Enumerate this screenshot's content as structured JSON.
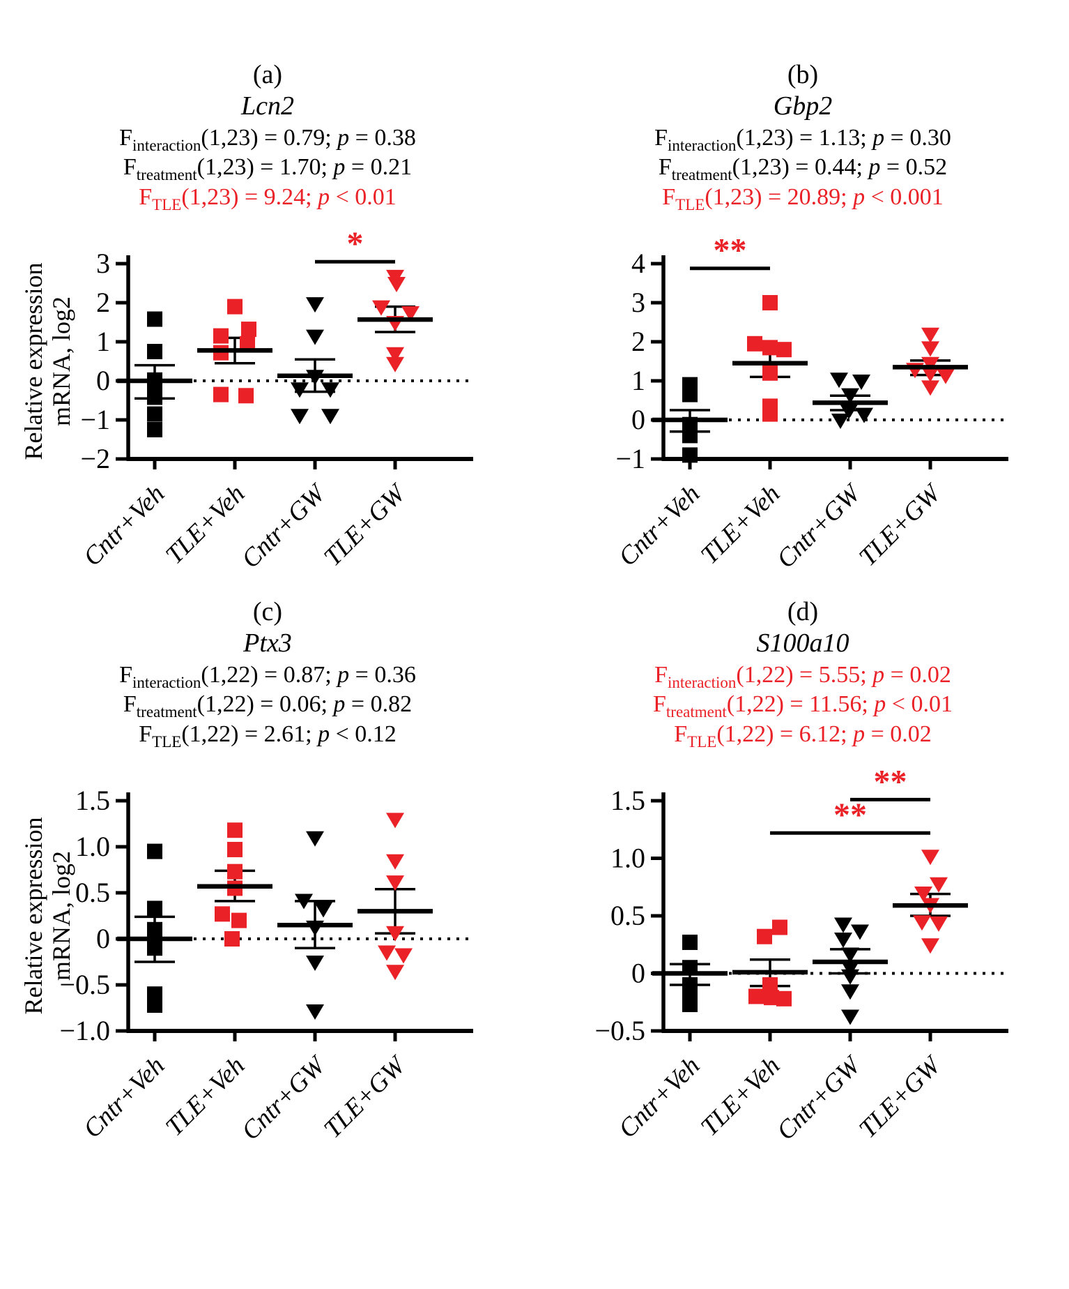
{
  "figure_title": "",
  "colors": {
    "red": "#EA2127",
    "black": "#000000",
    "background": "#FFFFFF"
  },
  "panels": [
    {
      "letter": "(a)",
      "gene": "Lcn2",
      "stats": [
        {
          "f": "F",
          "sub": "interaction",
          "left": "(1,23) = 0.79; ",
          "p": "p",
          "right": " = 0.38",
          "color": "#000000"
        },
        {
          "f": "F",
          "sub": "treatment",
          "left": "(1,23) = 1.70; ",
          "p": "p",
          "right": " = 0.21",
          "color": "#000000"
        },
        {
          "f": "F",
          "sub": "TLE",
          "left": "(1,23) = 9.24; ",
          "p": "p",
          "right": " < 0.01",
          "color": "#EA2127"
        }
      ]
    },
    {
      "letter": "(b)",
      "gene": "Gbp2",
      "stats": [
        {
          "f": "F",
          "sub": "interaction",
          "left": "(1,23) = 1.13; ",
          "p": "p",
          "right": " = 0.30",
          "color": "#000000"
        },
        {
          "f": "F",
          "sub": "treatment",
          "left": "(1,23) = 0.44; ",
          "p": "p",
          "right": " = 0.52",
          "color": "#000000"
        },
        {
          "f": "F",
          "sub": "TLE",
          "left": "(1,23) = 20.89; ",
          "p": "p",
          "right": " < 0.001",
          "color": "#EA2127"
        }
      ]
    },
    {
      "letter": "(c)",
      "gene": "Ptx3",
      "stats": [
        {
          "f": "F",
          "sub": "interaction",
          "left": "(1,22) = 0.87; ",
          "p": "p",
          "right": " = 0.36",
          "color": "#000000"
        },
        {
          "f": "F",
          "sub": "treatment",
          "left": "(1,22) = 0.06; ",
          "p": "p",
          "right": " = 0.82",
          "color": "#000000"
        },
        {
          "f": "F",
          "sub": "TLE",
          "left": "(1,22) = 2.61; ",
          "p": "p",
          "right": " < 0.12",
          "color": "#000000"
        }
      ]
    },
    {
      "letter": "(d)",
      "gene": "S100a10",
      "stats": [
        {
          "f": "F",
          "sub": "interaction",
          "left": "(1,22) = 5.55; ",
          "p": "p",
          "right": " = 0.02",
          "color": "#EA2127"
        },
        {
          "f": "F",
          "sub": "treatment",
          "left": "(1,22) = 11.56; ",
          "p": "p",
          "right": " < 0.01",
          "color": "#EA2127"
        },
        {
          "f": "F",
          "sub": "TLE",
          "left": "(1,22) = 6.12; ",
          "p": "p",
          "right": " = 0.02",
          "color": "#EA2127"
        }
      ]
    }
  ],
  "chart_data": [
    {
      "type": "scatter",
      "title": "Lcn2",
      "ylabel": "Relative expression mRNA, log2",
      "ylabel_lines": [
        "Relative expression",
        "mRNA, log2"
      ],
      "ylim": [
        -2,
        3
      ],
      "yticks": [
        {
          "v": 3,
          "label": "3"
        },
        {
          "v": 2,
          "label": "2"
        },
        {
          "v": 1,
          "label": "1"
        },
        {
          "v": 0,
          "label": "0"
        },
        {
          "v": -1,
          "label": "−1"
        },
        {
          "v": -2,
          "label": "−2"
        }
      ],
      "zero_line": 0,
      "grid": false,
      "categories": [
        "Cntr+Veh",
        "TLE+Veh",
        "Cntr+GW",
        "TLE+GW"
      ],
      "groups": [
        {
          "name": "Cntr+Veh",
          "marker": "square",
          "color": "#000000",
          "mean": 0.0,
          "sem": [
            -0.45,
            0.4
          ],
          "points": [
            [
              0,
              1.58
            ],
            [
              0,
              0.75
            ],
            [
              0,
              0.02
            ],
            [
              0,
              -0.3
            ],
            [
              0,
              -0.42
            ],
            [
              0,
              -0.85
            ],
            [
              0,
              -1.25
            ]
          ]
        },
        {
          "name": "TLE+Veh",
          "marker": "square",
          "color": "#EA2127",
          "mean": 0.78,
          "sem": [
            0.45,
            1.1
          ],
          "points": [
            [
              0,
              1.9
            ],
            [
              20,
              1.32
            ],
            [
              -20,
              1.15
            ],
            [
              18,
              0.95
            ],
            [
              -20,
              0.72
            ],
            [
              -20,
              -0.35
            ],
            [
              16,
              -0.38
            ]
          ]
        },
        {
          "name": "Cntr+GW",
          "marker": "triangle-down",
          "color": "#000000",
          "mean": 0.13,
          "sem": [
            -0.28,
            0.55
          ],
          "points": [
            [
              0,
              1.98
            ],
            [
              0,
              1.15
            ],
            [
              0,
              0.12
            ],
            [
              -22,
              -0.2
            ],
            [
              22,
              -0.2
            ],
            [
              -22,
              -0.88
            ],
            [
              22,
              -0.88
            ]
          ]
        },
        {
          "name": "TLE+GW",
          "marker": "triangle-down",
          "color": "#EA2127",
          "mean": 1.57,
          "sem": [
            1.25,
            1.9
          ],
          "points": [
            [
              0,
              2.68
            ],
            [
              2,
              2.5
            ],
            [
              -20,
              1.9
            ],
            [
              22,
              1.75
            ],
            [
              0,
              1.5
            ],
            [
              0,
              0.7
            ],
            [
              0,
              0.45
            ]
          ]
        }
      ],
      "sig": [
        {
          "from": 2,
          "to": 3,
          "y": 3.05,
          "label": "*",
          "color": "#EA2127"
        }
      ]
    },
    {
      "type": "scatter",
      "title": "Gbp2",
      "ylabel": "",
      "ylabel_lines": [],
      "ylim": [
        -1,
        4
      ],
      "yticks": [
        {
          "v": 4,
          "label": "4"
        },
        {
          "v": 3,
          "label": "3"
        },
        {
          "v": 2,
          "label": "2"
        },
        {
          "v": 1,
          "label": "1"
        },
        {
          "v": 0,
          "label": "0"
        },
        {
          "v": -1,
          "label": "−1"
        }
      ],
      "zero_line": 0,
      "grid": false,
      "categories": [
        "Cntr+Veh",
        "TLE+Veh",
        "Cntr+GW",
        "TLE+GW"
      ],
      "groups": [
        {
          "name": "Cntr+Veh",
          "marker": "square",
          "color": "#000000",
          "mean": 0.0,
          "sem": [
            -0.3,
            0.25
          ],
          "points": [
            [
              0,
              0.9
            ],
            [
              0,
              0.65
            ],
            [
              0,
              -0.12
            ],
            [
              0,
              -0.22
            ],
            [
              0,
              -0.3
            ],
            [
              0,
              -0.4
            ],
            [
              0,
              -0.9
            ]
          ]
        },
        {
          "name": "TLE+Veh",
          "marker": "square",
          "color": "#EA2127",
          "mean": 1.45,
          "sem": [
            1.1,
            1.85
          ],
          "points": [
            [
              0,
              3.0
            ],
            [
              -22,
              1.95
            ],
            [
              0,
              1.85
            ],
            [
              20,
              1.8
            ],
            [
              0,
              1.2
            ],
            [
              0,
              0.35
            ],
            [
              0,
              0.15
            ]
          ]
        },
        {
          "name": "Cntr+GW",
          "marker": "triangle-down",
          "color": "#000000",
          "mean": 0.44,
          "sem": [
            0.25,
            0.62
          ],
          "points": [
            [
              -16,
              1.05
            ],
            [
              16,
              1.0
            ],
            [
              0,
              0.65
            ],
            [
              0,
              0.3
            ],
            [
              -2,
              0.25
            ],
            [
              20,
              0.15
            ],
            [
              -14,
              0.0
            ]
          ]
        },
        {
          "name": "TLE+GW",
          "marker": "triangle-down",
          "color": "#EA2127",
          "mean": 1.35,
          "sem": [
            1.15,
            1.52
          ],
          "points": [
            [
              0,
              2.2
            ],
            [
              0,
              1.85
            ],
            [
              0,
              1.45
            ],
            [
              -22,
              1.3
            ],
            [
              0,
              1.2
            ],
            [
              22,
              1.15
            ],
            [
              0,
              0.85
            ]
          ]
        }
      ],
      "sig": [
        {
          "from": 0,
          "to": 1,
          "y": 3.88,
          "label": "**",
          "color": "#EA2127"
        }
      ]
    },
    {
      "type": "scatter",
      "title": "Ptx3",
      "ylabel": "Relative expression mRNA, log2",
      "ylabel_lines": [
        "Relative expression",
        "mRNA, log2"
      ],
      "ylim": [
        -1.0,
        1.5
      ],
      "yticks": [
        {
          "v": 1.5,
          "label": "1.5"
        },
        {
          "v": 1.0,
          "label": "1.0"
        },
        {
          "v": 0.5,
          "label": "0.5"
        },
        {
          "v": 0,
          "label": "0"
        },
        {
          "v": -0.5,
          "label": "−0.5"
        },
        {
          "v": -1.0,
          "label": "−1.0"
        }
      ],
      "zero_line": 0,
      "grid": false,
      "categories": [
        "Cntr+Veh",
        "TLE+Veh",
        "Cntr+GW",
        "TLE+GW"
      ],
      "groups": [
        {
          "name": "Cntr+Veh",
          "marker": "square",
          "color": "#000000",
          "mean": 0.0,
          "sem": [
            -0.25,
            0.24
          ],
          "points": [
            [
              0,
              0.95
            ],
            [
              0,
              0.33
            ],
            [
              0,
              0.1
            ],
            [
              0,
              0.04
            ],
            [
              0,
              -0.1
            ],
            [
              0,
              -0.6
            ],
            [
              0,
              -0.72
            ]
          ]
        },
        {
          "name": "TLE+Veh",
          "marker": "square",
          "color": "#EA2127",
          "mean": 0.57,
          "sem": [
            0.41,
            0.74
          ],
          "points": [
            [
              0,
              1.18
            ],
            [
              0,
              0.97
            ],
            [
              0,
              0.73
            ],
            [
              0,
              0.55
            ],
            [
              -18,
              0.27
            ],
            [
              6,
              0.2
            ],
            [
              -4,
              0.0
            ]
          ]
        },
        {
          "name": "Cntr+GW",
          "marker": "triangle-down",
          "color": "#000000",
          "mean": 0.15,
          "sem": [
            -0.1,
            0.41
          ],
          "points": [
            [
              0,
              1.1
            ],
            [
              -16,
              0.42
            ],
            [
              12,
              0.33
            ],
            [
              0,
              0.13
            ],
            [
              0,
              -0.25
            ],
            [
              0,
              -0.78
            ]
          ]
        },
        {
          "name": "TLE+GW",
          "marker": "triangle-down",
          "color": "#EA2127",
          "mean": 0.3,
          "sem": [
            0.06,
            0.54
          ],
          "points": [
            [
              0,
              1.3
            ],
            [
              0,
              0.85
            ],
            [
              0,
              0.62
            ],
            [
              0,
              0.07
            ],
            [
              -12,
              -0.14
            ],
            [
              12,
              -0.17
            ],
            [
              0,
              -0.35
            ]
          ]
        }
      ],
      "sig": []
    },
    {
      "type": "scatter",
      "title": "S100a10",
      "ylabel": "",
      "ylabel_lines": [],
      "ylim": [
        -0.5,
        1.5
      ],
      "yticks": [
        {
          "v": 1.5,
          "label": "1.5"
        },
        {
          "v": 1.0,
          "label": "1.0"
        },
        {
          "v": 0.5,
          "label": "0.5"
        },
        {
          "v": 0,
          "label": "0"
        },
        {
          "v": -0.5,
          "label": "−0.5"
        }
      ],
      "zero_line": 0,
      "grid": false,
      "categories": [
        "Cntr+Veh",
        "TLE+Veh",
        "Cntr+GW",
        "TLE+GW"
      ],
      "groups": [
        {
          "name": "Cntr+Veh",
          "marker": "square",
          "color": "#000000",
          "mean": 0.0,
          "sem": [
            -0.1,
            0.08
          ],
          "points": [
            [
              0,
              0.27
            ],
            [
              0,
              0.05
            ],
            [
              0,
              -0.1
            ],
            [
              0,
              -0.16
            ],
            [
              0,
              -0.22
            ],
            [
              0,
              -0.27
            ]
          ]
        },
        {
          "name": "TLE+Veh",
          "marker": "square",
          "color": "#EA2127",
          "mean": 0.01,
          "sem": [
            -0.11,
            0.12
          ],
          "points": [
            [
              14,
              0.4
            ],
            [
              -8,
              0.32
            ],
            [
              0,
              -0.1
            ],
            [
              -20,
              -0.2
            ],
            [
              2,
              -0.21
            ],
            [
              20,
              -0.22
            ]
          ]
        },
        {
          "name": "Cntr+GW",
          "marker": "triangle-down",
          "color": "#000000",
          "mean": 0.1,
          "sem": [
            0.0,
            0.21
          ],
          "points": [
            [
              -10,
              0.43
            ],
            [
              14,
              0.37
            ],
            [
              -10,
              0.3
            ],
            [
              0,
              0.17
            ],
            [
              0,
              0.05
            ],
            [
              0,
              -0.02
            ],
            [
              0,
              -0.15
            ],
            [
              0,
              -0.37
            ]
          ]
        },
        {
          "name": "TLE+GW",
          "marker": "triangle-down",
          "color": "#EA2127",
          "mean": 0.59,
          "sem": [
            0.5,
            0.69
          ],
          "points": [
            [
              0,
              1.02
            ],
            [
              12,
              0.78
            ],
            [
              -10,
              0.7
            ],
            [
              0,
              0.6
            ],
            [
              -12,
              0.45
            ],
            [
              12,
              0.44
            ],
            [
              0,
              0.25
            ]
          ]
        }
      ],
      "sig": [
        {
          "from": 1,
          "to": 3,
          "y": 1.22,
          "label": "**",
          "color": "#EA2127"
        },
        {
          "from": 2,
          "to": 3,
          "y": 1.51,
          "label": "**",
          "color": "#EA2127"
        }
      ]
    }
  ]
}
